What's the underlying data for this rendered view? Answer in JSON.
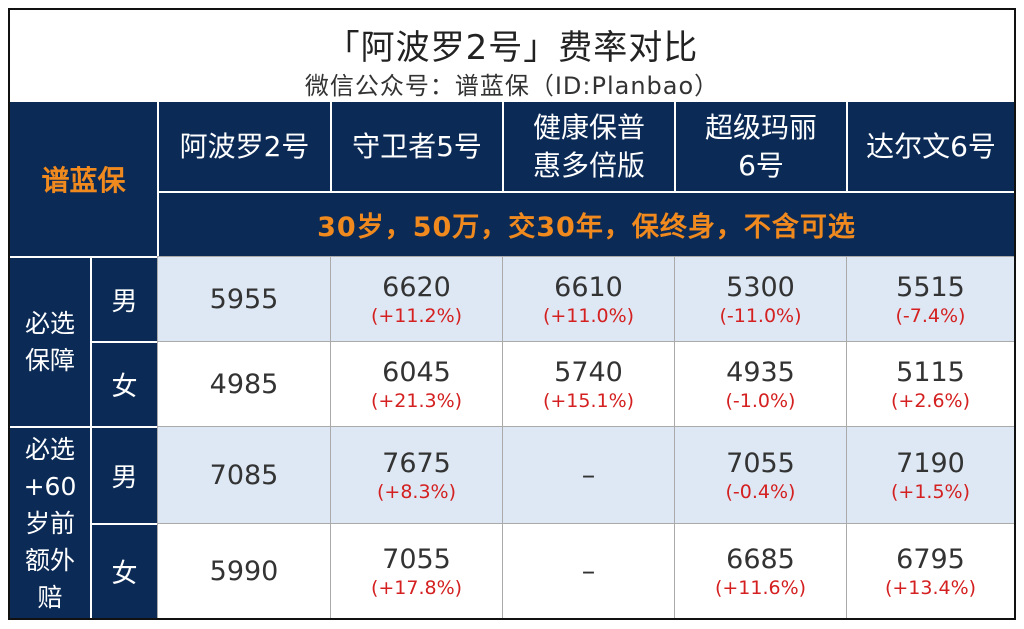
{
  "title": "「阿波罗2号」费率对比",
  "subtitle": "微信公众号：谱蓝保（ID:Planbao）",
  "brand": "谱蓝保",
  "columns": [
    "阿波罗2号",
    "守卫者5号",
    "健康保普\n惠多倍版",
    "超级玛丽\n6号",
    "达尔文6号"
  ],
  "condition": "30岁，50万，交30年，保终身，不含可选",
  "groups": [
    {
      "label": "必选\n保障",
      "genders": [
        "男",
        "女"
      ]
    },
    {
      "label": "必选\n+60\n岁前\n额外\n赔",
      "genders": [
        "男",
        "女"
      ]
    }
  ],
  "rows": [
    [
      {
        "v": "5955",
        "p": ""
      },
      {
        "v": "6620",
        "p": "(+11.2%)"
      },
      {
        "v": "6610",
        "p": "(+11.0%)"
      },
      {
        "v": "5300",
        "p": "(-11.0%)"
      },
      {
        "v": "5515",
        "p": "(-7.4%)"
      }
    ],
    [
      {
        "v": "4985",
        "p": ""
      },
      {
        "v": "6045",
        "p": "(+21.3%)"
      },
      {
        "v": "5740",
        "p": "(+15.1%)"
      },
      {
        "v": "4935",
        "p": "(-1.0%)"
      },
      {
        "v": "5115",
        "p": "(+2.6%)"
      }
    ],
    [
      {
        "v": "7085",
        "p": ""
      },
      {
        "v": "7675",
        "p": "(+8.3%)"
      },
      {
        "v": "–",
        "p": ""
      },
      {
        "v": "7055",
        "p": "(-0.4%)"
      },
      {
        "v": "7190",
        "p": "(+1.5%)"
      }
    ],
    [
      {
        "v": "5990",
        "p": ""
      },
      {
        "v": "7055",
        "p": "(+17.8%)"
      },
      {
        "v": "–",
        "p": ""
      },
      {
        "v": "6685",
        "p": "(+11.6%)"
      },
      {
        "v": "6795",
        "p": "(+13.4%)"
      }
    ]
  ],
  "colors": {
    "navy": "#0b2a56",
    "orange": "#f08a1e",
    "light_row": "#dde8f4",
    "red": "#d42020"
  }
}
